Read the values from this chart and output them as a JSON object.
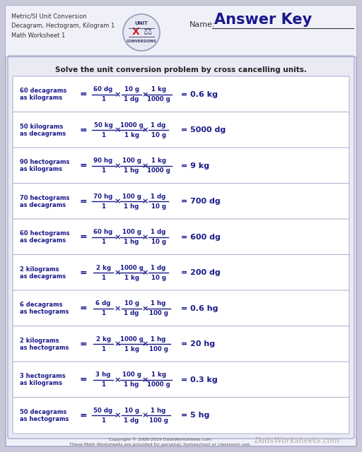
{
  "title_lines": [
    "Metric/SI Unit Conversion",
    "Decagram, Hectogram, Kilogram 1",
    "Math Worksheet 1"
  ],
  "answer_key_text": "Answer Key",
  "name_label": "Name:",
  "instruction": "Solve the unit conversion problem by cross cancelling units.",
  "text_color": "#1a1a8c",
  "problems": [
    {
      "label1": "60 decagrams",
      "label2": "as kilograms",
      "num1": "60 dg",
      "den1": "1",
      "num2": "10 g",
      "den2": "1 dg",
      "num3": "1 kg",
      "den3": "1000 g",
      "result": "= 0.6 kg"
    },
    {
      "label1": "50 kilograms",
      "label2": "as decagrams",
      "num1": "50 kg",
      "den1": "1",
      "num2": "1000 g",
      "den2": "1 kg",
      "num3": "1 dg",
      "den3": "10 g",
      "result": "= 5000 dg"
    },
    {
      "label1": "90 hectograms",
      "label2": "as kilograms",
      "num1": "90 hg",
      "den1": "1",
      "num2": "100 g",
      "den2": "1 hg",
      "num3": "1 kg",
      "den3": "1000 g",
      "result": "= 9 kg"
    },
    {
      "label1": "70 hectograms",
      "label2": "as decagrams",
      "num1": "70 hg",
      "den1": "1",
      "num2": "100 g",
      "den2": "1 hg",
      "num3": "1 dg",
      "den3": "10 g",
      "result": "= 700 dg"
    },
    {
      "label1": "60 hectograms",
      "label2": "as decagrams",
      "num1": "60 hg",
      "den1": "1",
      "num2": "100 g",
      "den2": "1 hg",
      "num3": "1 dg",
      "den3": "10 g",
      "result": "= 600 dg"
    },
    {
      "label1": "2 kilograms",
      "label2": "as decagrams",
      "num1": "2 kg",
      "den1": "1",
      "num2": "1000 g",
      "den2": "1 kg",
      "num3": "1 dg",
      "den3": "10 g",
      "result": "= 200 dg"
    },
    {
      "label1": "6 decagrams",
      "label2": "as hectograms",
      "num1": "6 dg",
      "den1": "1",
      "num2": "10 g",
      "den2": "1 dg",
      "num3": "1 hg",
      "den3": "100 g",
      "result": "= 0.6 hg"
    },
    {
      "label1": "2 kilograms",
      "label2": "as hectograms",
      "num1": "2 kg",
      "den1": "1",
      "num2": "1000 g",
      "den2": "1 kg",
      "num3": "1 hg",
      "den3": "100 g",
      "result": "= 20 hg"
    },
    {
      "label1": "3 hectograms",
      "label2": "as kilograms",
      "num1": "3 hg",
      "den1": "1",
      "num2": "100 g",
      "den2": "1 hg",
      "num3": "1 kg",
      "den3": "1000 g",
      "result": "= 0.3 kg"
    },
    {
      "label1": "50 decagrams",
      "label2": "as hectograms",
      "num1": "50 dg",
      "den1": "1",
      "num2": "10 g",
      "den2": "1 dg",
      "num3": "1 hg",
      "den3": "100 g",
      "result": "= 5 hg"
    }
  ],
  "footer1": "Copyright © 2008-2019 DadsWorksheets.com",
  "footer2": "These Math Worksheets are provided for personal, homeschool or classroom use.",
  "footer_site": "DadsWorksheets.com"
}
